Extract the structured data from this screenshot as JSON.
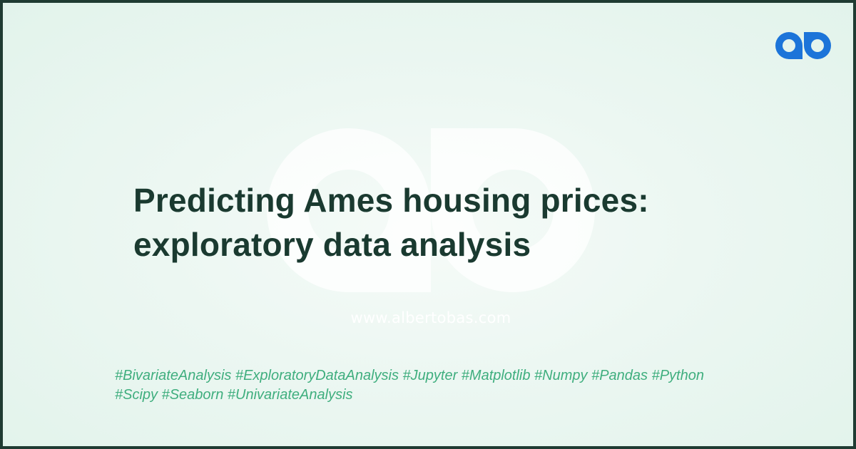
{
  "brand": {
    "logo_icon": "albertobas-ao-logo-icon",
    "watermark_icon": "albertobas-ao-watermark-icon",
    "logo_color": "#1c74d9",
    "watermark_color": "#ffffff"
  },
  "title": {
    "line1": "Predicting Ames housing prices:",
    "line2": "exploratory data analysis"
  },
  "site_url": "www.albertobas.com",
  "tags": {
    "line1": "#BivariateAnalysis #ExploratoryDataAnalysis #Jupyter #Matplotlib #Numpy #Pandas #Python",
    "line2": "#Scipy #Seaborn #UnivariateAnalysis"
  },
  "colors": {
    "border": "#1f3b32",
    "title": "#1a3a30",
    "tags": "#3fae7e",
    "background": "#e8f5ef"
  }
}
